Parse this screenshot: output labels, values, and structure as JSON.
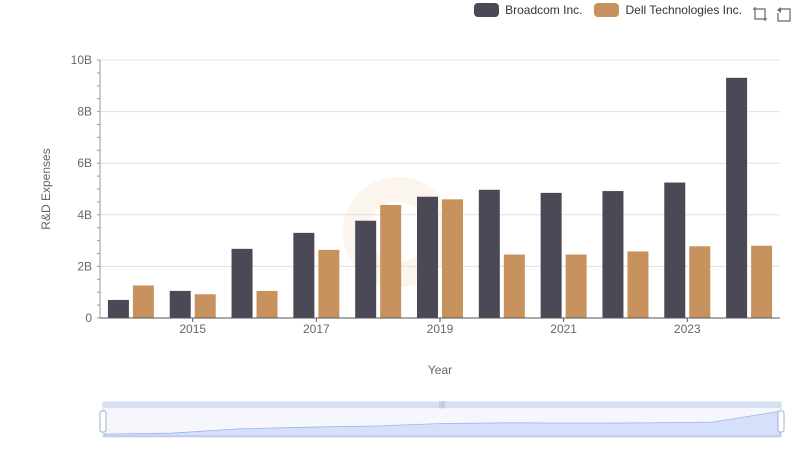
{
  "legend": {
    "items": [
      {
        "label": "Broadcom Inc.",
        "color": "#4a4955"
      },
      {
        "label": "Dell Technologies Inc.",
        "color": "#c8925e"
      }
    ]
  },
  "toolbox": {
    "icons": [
      "zoom-icon",
      "restore-icon"
    ]
  },
  "chart_data": {
    "type": "bar",
    "categories": [
      "2014",
      "2015",
      "2016",
      "2017",
      "2018",
      "2019",
      "2020",
      "2021",
      "2022",
      "2023",
      "2024"
    ],
    "x_tick_labels": [
      "2015",
      "2017",
      "2019",
      "2021",
      "2023"
    ],
    "series": [
      {
        "name": "Broadcom Inc.",
        "color": "#4a4955",
        "values": [
          0.7,
          1.05,
          2.68,
          3.3,
          3.77,
          4.7,
          4.97,
          4.85,
          4.92,
          5.25,
          9.31
        ]
      },
      {
        "name": "Dell Technologies Inc.",
        "color": "#c8925e",
        "values": [
          1.26,
          0.92,
          1.05,
          2.64,
          4.38,
          4.6,
          2.46,
          2.46,
          2.58,
          2.78,
          2.8
        ]
      }
    ],
    "ylabel": "R&D Expenses",
    "xlabel": "Year",
    "y_tick_labels": [
      "0",
      "2B",
      "4B",
      "6B",
      "8B",
      "10B"
    ],
    "ylim": [
      0,
      10
    ],
    "grid": true
  }
}
